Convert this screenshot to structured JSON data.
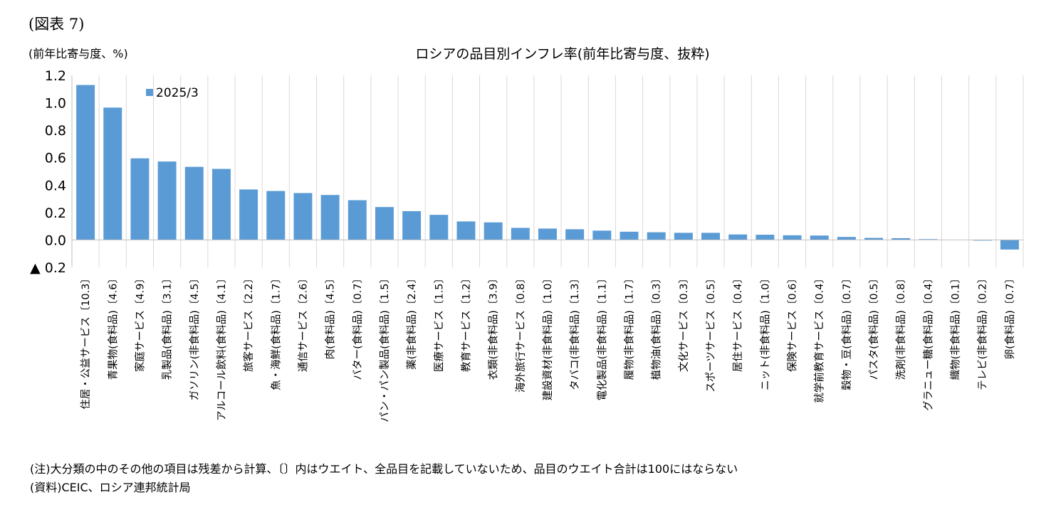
{
  "figure_label": "(図表 7)",
  "unit_label": "(前年比寄与度、%)",
  "notes": {
    "note1": "(注)大分類の中のその他の項目は残差から計算、〔〕内はウエイト、全品目を記載していないため、品目のウエイト合計は100にはならない",
    "note2": "(資料)CEIC、ロシア連邦統計局"
  },
  "colors": {
    "bar": "#5b9bd5",
    "grid": "#d9d9d9",
    "axis": "#bfbfbf"
  },
  "chart_data": {
    "type": "bar",
    "title": "ロシアの品目別インフレ率(前年比寄与度、抜粋)",
    "xlabel": "",
    "ylabel": "(前年比寄与度、%)",
    "ylim": [
      -0.2,
      1.2
    ],
    "y_ticks": [
      1.2,
      1.0,
      0.8,
      0.6,
      0.4,
      0.2,
      0.0,
      -0.2
    ],
    "y_tick_labels": [
      "1.2",
      "1.0",
      "0.8",
      "0.6",
      "0.4",
      "0.2",
      "0.0",
      "▲ 0.2"
    ],
    "legend": [
      "2025/3"
    ],
    "legend_position": "top-left",
    "grid": "vertical",
    "categories": [
      "住居・公益サービス〔10.3〕",
      "青果物(食料品)〔4.6〕",
      "家庭サービス〔4.9〕",
      "乳製品(食料品)〔3.1〕",
      "ガソリン(非食料品)〔4.5〕",
      "アルコール飲料(食料品)〔4.1〕",
      "旅客サービス〔2.2〕",
      "魚・海鮮(食料品)〔1.7〕",
      "通信サービス〔2.6〕",
      "肉(食料品)〔4.5〕",
      "バター(食料品)〔0.7〕",
      "パン・パン製品(食料品)〔1.5〕",
      "薬(非食料品)〔2.4〕",
      "医療サービス〔1.5〕",
      "教育サービス〔1.2〕",
      "衣類(非食料品)〔3.9〕",
      "海外旅行サービス〔0.8〕",
      "建設資材(非食料品)〔1.0〕",
      "タバコ(非食料品)〔1.3〕",
      "電化製品(非食料品)〔1.1〕",
      "履物(非食料品)〔1.7〕",
      "植物油(食料品)〔0.3〕",
      "文化サービス〔0.3〕",
      "スポーツサービス〔0.5〕",
      "居住サービス〔0.4〕",
      "ニット(非食料品)〔1.0〕",
      "保険サービス〔0.6〕",
      "就学前教育サービス〔0.4〕",
      "穀物・豆(食料品)〔0.7〕",
      "パスタ(食料品)〔0.5〕",
      "洗剤(非食料品)〔0.8〕",
      "グラニュー糖(食料品)〔0.4〕",
      "織物(非食料品)〔0.1〕",
      "テレビ(非食料品)〔0.2〕",
      "卵(食料品)〔0.7〕"
    ],
    "series": [
      {
        "name": "2025/3",
        "values": [
          1.13,
          0.965,
          0.595,
          0.572,
          0.533,
          0.518,
          0.368,
          0.357,
          0.342,
          0.328,
          0.29,
          0.24,
          0.21,
          0.183,
          0.135,
          0.128,
          0.088,
          0.083,
          0.078,
          0.068,
          0.06,
          0.056,
          0.052,
          0.052,
          0.04,
          0.038,
          0.034,
          0.032,
          0.022,
          0.015,
          0.013,
          0.006,
          0.0,
          -0.005,
          -0.07
        ]
      }
    ]
  }
}
